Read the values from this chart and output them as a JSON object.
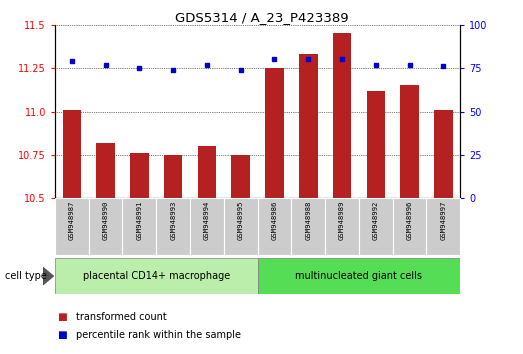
{
  "title": "GDS5314 / A_23_P423389",
  "samples": [
    "GSM948987",
    "GSM948990",
    "GSM948991",
    "GSM948993",
    "GSM948994",
    "GSM948995",
    "GSM948986",
    "GSM948988",
    "GSM948989",
    "GSM948992",
    "GSM948996",
    "GSM948997"
  ],
  "transformed_count": [
    11.01,
    10.82,
    10.76,
    10.75,
    10.8,
    10.75,
    11.25,
    11.33,
    11.45,
    11.12,
    11.15,
    11.01
  ],
  "percentile_rank": [
    79,
    77,
    75,
    74,
    77,
    74,
    80,
    80,
    80,
    77,
    77,
    76
  ],
  "group1_label": "placental CD14+ macrophage",
  "group2_label": "multinucleated giant cells",
  "group1_count": 6,
  "group2_count": 6,
  "ylim_left": [
    10.5,
    11.5
  ],
  "ylim_right": [
    0,
    100
  ],
  "yticks_left": [
    10.5,
    10.75,
    11.0,
    11.25,
    11.5
  ],
  "yticks_right": [
    0,
    25,
    50,
    75,
    100
  ],
  "bar_color": "#b52020",
  "dot_color": "#0000cc",
  "group1_bg": "#bbeeaa",
  "group2_bg": "#55dd55",
  "sample_bg": "#cccccc",
  "legend_bar_label": "transformed count",
  "legend_dot_label": "percentile rank within the sample",
  "cell_type_label": "cell type",
  "grid_color": "#000000",
  "baseline": 10.5
}
